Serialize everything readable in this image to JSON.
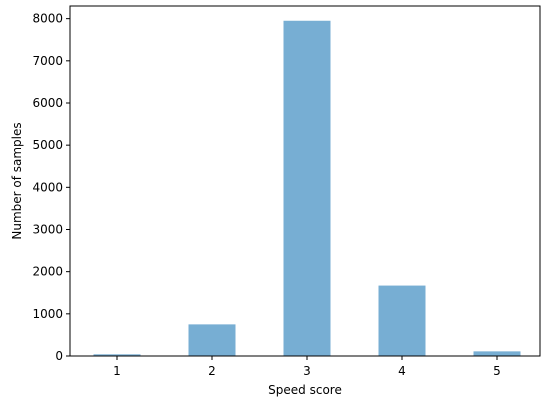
{
  "chart_data": {
    "type": "bar",
    "categories": [
      "1",
      "2",
      "3",
      "4",
      "5"
    ],
    "values": [
      40,
      750,
      7950,
      1670,
      110
    ],
    "xlabel": "Speed score",
    "ylabel": "Number of samples",
    "ylim": [
      0,
      8300
    ],
    "yticks": [
      "0",
      "1000",
      "2000",
      "3000",
      "4000",
      "5000",
      "6000",
      "7000",
      "8000"
    ],
    "bar_color": "#77aed3",
    "grid": false,
    "legend": "none"
  }
}
